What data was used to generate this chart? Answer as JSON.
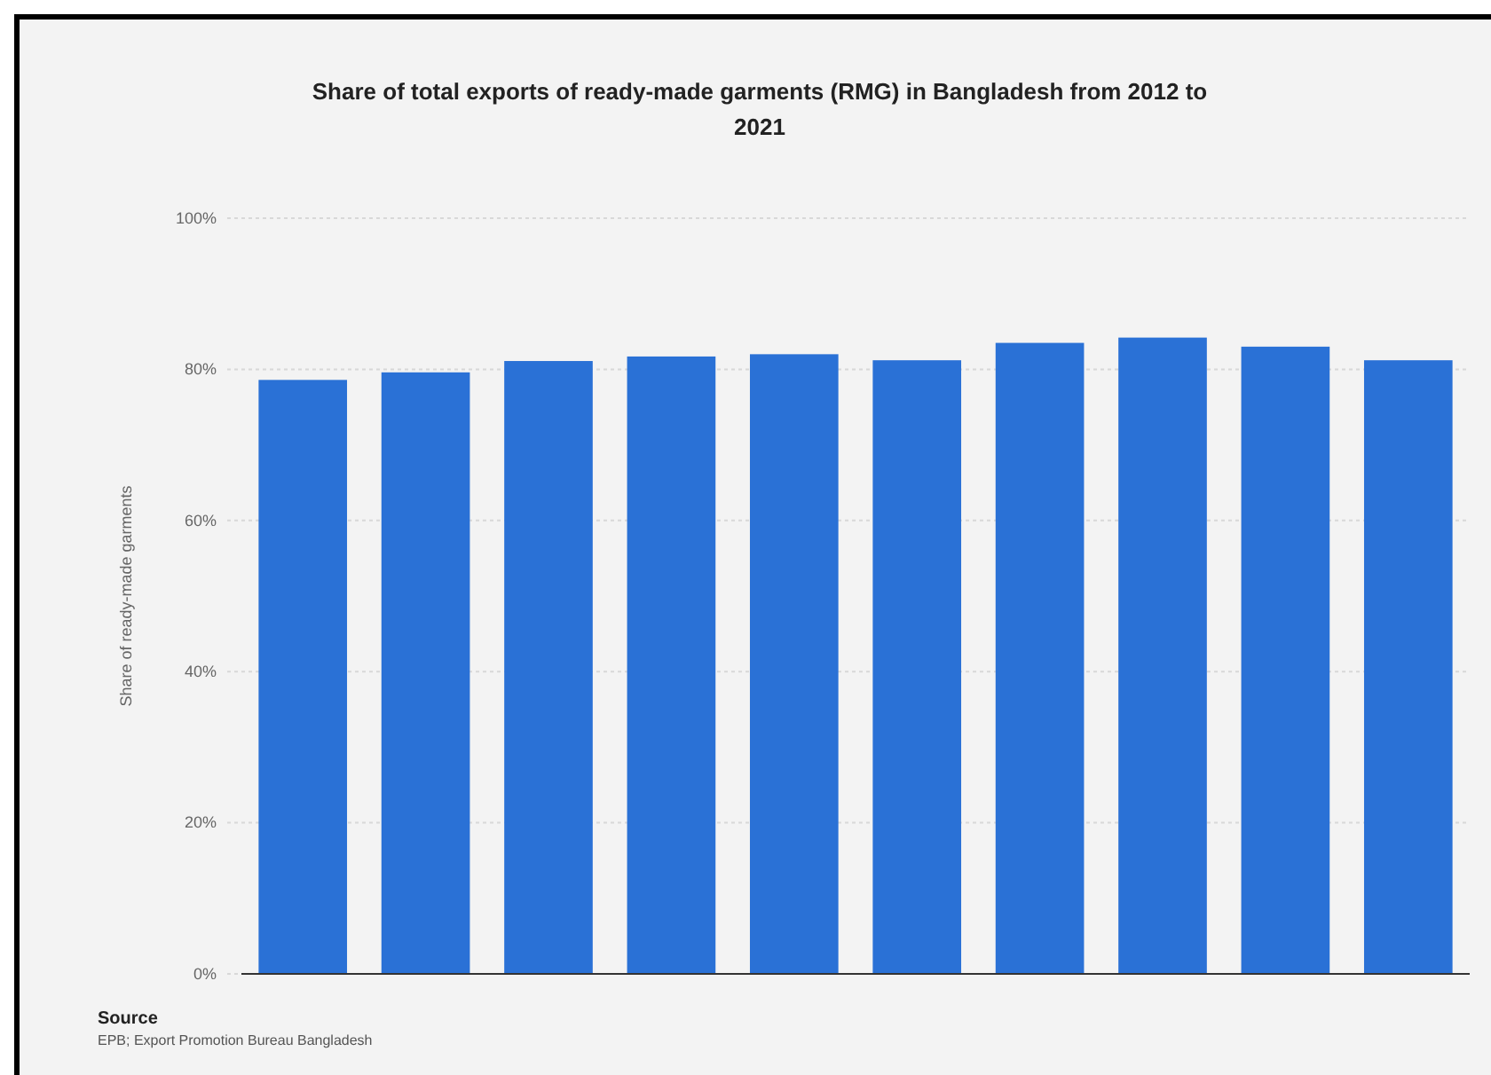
{
  "chart_data": {
    "type": "bar",
    "title": "Share of total exports of ready-made garments (RMG) in Bangladesh from 2012 to 2021",
    "ylabel": "Share of ready-made garments",
    "categories": [
      null,
      null,
      null,
      null,
      null,
      null,
      null,
      null,
      null,
      null
    ],
    "values": [
      78.6,
      79.6,
      81.1,
      81.7,
      82.0,
      81.2,
      83.5,
      84.2,
      83.0,
      81.2
    ],
    "color": "#2a71d6",
    "ylim": [
      0,
      100
    ],
    "yticks": [
      {
        "value": 0,
        "label": "0%"
      },
      {
        "value": 20,
        "label": "20%"
      },
      {
        "value": 40,
        "label": "40%"
      },
      {
        "value": 60,
        "label": "60%"
      },
      {
        "value": 80,
        "label": "80%"
      },
      {
        "value": 100,
        "label": "100%"
      }
    ],
    "grid": "y",
    "annotations": [
      "Source",
      "EPB; Export Promotion Bureau Bangladesh"
    ]
  }
}
